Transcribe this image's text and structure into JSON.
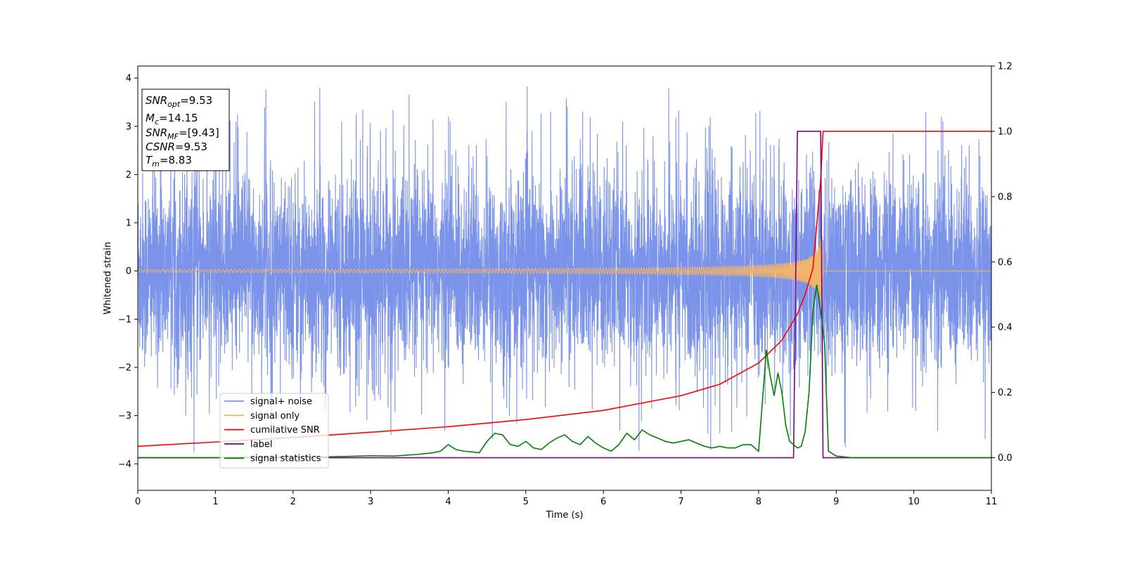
{
  "chart_data": {
    "type": "line",
    "title": "",
    "xlabel": "Time (s)",
    "ylabel": "Whitened strain",
    "xlim": [
      0,
      11
    ],
    "ylim": [
      -4.55,
      4.25
    ],
    "y2lim": [
      -0.1,
      1.2
    ],
    "grid": false,
    "legend_position": "lower-left",
    "xticks": [
      "0",
      "1",
      "2",
      "3",
      "4",
      "5",
      "6",
      "7",
      "8",
      "9",
      "10",
      "11"
    ],
    "yticks": [
      "4",
      "3",
      "2",
      "1",
      "0",
      "−1",
      "−2",
      "−3",
      "−4"
    ],
    "y2ticks": [
      "1.2",
      "1.0",
      "0.8",
      "0.6",
      "0.4",
      "0.2",
      "0.0"
    ],
    "info_box": [
      {
        "main": "SNR",
        "sub": "opt",
        "value": "=9.53"
      },
      {
        "main": "M",
        "sub": "c",
        "value": "=14.15"
      },
      {
        "main": "SNR",
        "sub": "MF",
        "value": "=[9.43]"
      },
      {
        "main": "CSNR",
        "sub": "",
        "value": "=9.53"
      },
      {
        "main": "T",
        "sub": "m",
        "value": "=8.83"
      }
    ],
    "series": [
      {
        "name": "signal+ noise",
        "color": "#7b93e8",
        "axis": "left",
        "description_values": {
          "noise_sigma": 1.0,
          "spikes_max": 3.88,
          "spikes_min": -4.15
        }
      },
      {
        "name": "signal only",
        "color": "#f2b46a",
        "axis": "left",
        "chirp": {
          "t_merge": 8.83,
          "amp_start": 0.03,
          "amp_peak": 0.75
        }
      },
      {
        "name": "cumilative SNR",
        "color": "#ff0000",
        "axis": "right",
        "x": [
          0,
          1,
          2,
          3,
          4,
          5,
          6,
          7,
          7.5,
          8,
          8.3,
          8.5,
          8.6,
          8.7,
          8.8,
          8.83,
          11
        ],
        "y": [
          0.035,
          0.048,
          0.062,
          0.078,
          0.095,
          0.117,
          0.145,
          0.19,
          0.225,
          0.29,
          0.36,
          0.44,
          0.5,
          0.58,
          0.85,
          1.0,
          1.0
        ]
      },
      {
        "name": "label",
        "color": "#800080",
        "axis": "right",
        "x": [
          0,
          8.45,
          8.5,
          8.8,
          8.83,
          11
        ],
        "y": [
          0,
          0,
          1,
          1,
          0,
          0
        ]
      },
      {
        "name": "signal statistics",
        "color": "#008000",
        "axis": "right",
        "x": [
          0,
          0.5,
          1,
          1.5,
          2,
          2.5,
          2.7,
          3,
          3.3,
          3.6,
          3.8,
          3.9,
          4.0,
          4.1,
          4.2,
          4.3,
          4.4,
          4.5,
          4.6,
          4.7,
          4.8,
          4.9,
          5.0,
          5.1,
          5.2,
          5.3,
          5.4,
          5.5,
          5.6,
          5.7,
          5.8,
          5.9,
          6.0,
          6.1,
          6.2,
          6.3,
          6.4,
          6.5,
          6.6,
          6.7,
          6.8,
          6.9,
          7.0,
          7.1,
          7.2,
          7.3,
          7.4,
          7.5,
          7.6,
          7.7,
          7.8,
          7.9,
          8.0,
          8.1,
          8.15,
          8.2,
          8.25,
          8.3,
          8.35,
          8.4,
          8.45,
          8.5,
          8.55,
          8.6,
          8.65,
          8.7,
          8.75,
          8.8,
          8.85,
          8.9,
          9.0,
          9.2,
          10,
          11
        ],
        "y": [
          0.0,
          0.0,
          0.0,
          0.002,
          0.002,
          0.003,
          0.004,
          0.006,
          0.005,
          0.01,
          0.015,
          0.02,
          0.04,
          0.025,
          0.02,
          0.018,
          0.015,
          0.05,
          0.075,
          0.07,
          0.04,
          0.035,
          0.05,
          0.03,
          0.025,
          0.045,
          0.06,
          0.07,
          0.05,
          0.04,
          0.065,
          0.045,
          0.03,
          0.02,
          0.04,
          0.075,
          0.055,
          0.085,
          0.07,
          0.06,
          0.05,
          0.045,
          0.05,
          0.055,
          0.045,
          0.035,
          0.03,
          0.035,
          0.03,
          0.03,
          0.04,
          0.04,
          0.02,
          0.33,
          0.25,
          0.19,
          0.26,
          0.2,
          0.1,
          0.05,
          0.04,
          0.03,
          0.035,
          0.08,
          0.2,
          0.45,
          0.53,
          0.45,
          0.35,
          0.02,
          0.005,
          0.0,
          0.0,
          0.0
        ]
      }
    ]
  }
}
